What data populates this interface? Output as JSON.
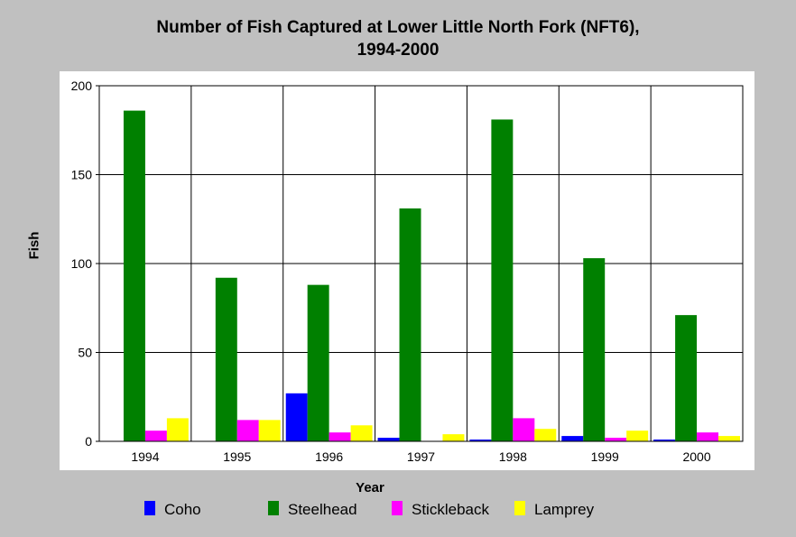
{
  "chart_data": {
    "type": "bar",
    "title_lines": [
      "Number of Fish Captured at Lower Little North Fork (NFT6),",
      "1994-2000"
    ],
    "xlabel": "Year",
    "ylabel": "Fish",
    "categories": [
      "1994",
      "1995",
      "1996",
      "1997",
      "1998",
      "1999",
      "2000"
    ],
    "ylim": [
      0,
      200
    ],
    "yticks": [
      0,
      50,
      100,
      150,
      200
    ],
    "grid": true,
    "legend_position": "bottom",
    "series": [
      {
        "name": "Coho",
        "color": "#0000ff",
        "values": [
          0,
          0,
          27,
          2,
          1,
          3,
          1
        ]
      },
      {
        "name": "Steelhead",
        "color": "#008000",
        "values": [
          186,
          92,
          88,
          131,
          181,
          103,
          71
        ]
      },
      {
        "name": "Stickleback",
        "color": "#ff00ff",
        "values": [
          6,
          12,
          5,
          0,
          13,
          2,
          5
        ]
      },
      {
        "name": "Lamprey",
        "color": "#ffff00",
        "values": [
          13,
          12,
          9,
          4,
          7,
          6,
          3
        ]
      }
    ]
  }
}
